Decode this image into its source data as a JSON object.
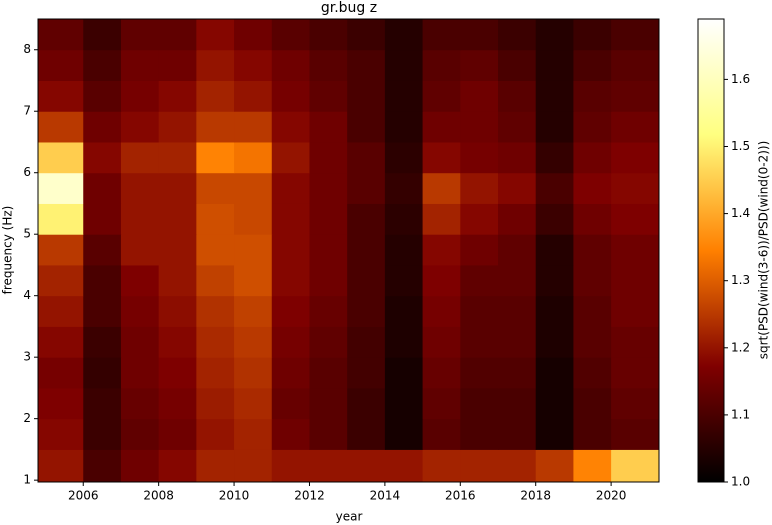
{
  "chart_data": {
    "type": "heatmap",
    "title": "gr.bug z",
    "xlabel": "year",
    "ylabel": "frequency (Hz)",
    "colorbar_label": "sqrt(PSD(wind(3-6))/PSD(wind(0-2)))",
    "colormap": "afmhot",
    "xlim": [
      2004.8,
      2021.27
    ],
    "ylim": [
      0.97,
      8.5
    ],
    "clim": [
      1.0,
      1.69
    ],
    "xticks": [
      2006,
      2008,
      2010,
      2012,
      2014,
      2016,
      2018,
      2020
    ],
    "yticks": [
      1,
      2,
      3,
      4,
      5,
      6,
      7,
      8
    ],
    "cticks": [
      {
        "value": 1,
        "label": "1.0"
      },
      1.1,
      1.2,
      1.3,
      1.4,
      1.5,
      1.6
    ],
    "x_edges": [
      2004.8,
      2006,
      2007,
      2008,
      2009,
      2010,
      2011,
      2012,
      2013,
      2014,
      2015,
      2016,
      2017,
      2018,
      2019,
      2020,
      2021.27
    ],
    "y_edges": [
      0.97,
      1.5,
      2,
      2.5,
      3,
      3.5,
      4,
      4.5,
      5,
      5.5,
      6,
      6.5,
      7,
      7.5,
      8,
      8.5
    ],
    "z": [
      [
        1.2,
        1.1,
        1.15,
        1.18,
        1.22,
        1.22,
        1.2,
        1.2,
        1.2,
        1.2,
        1.22,
        1.22,
        1.22,
        1.25,
        1.35,
        1.45
      ],
      [
        1.18,
        1.08,
        1.13,
        1.15,
        1.2,
        1.22,
        1.15,
        1.12,
        1.08,
        1.03,
        1.12,
        1.1,
        1.1,
        1.03,
        1.1,
        1.12
      ],
      [
        1.17,
        1.08,
        1.14,
        1.16,
        1.21,
        1.23,
        1.14,
        1.12,
        1.08,
        1.03,
        1.13,
        1.1,
        1.1,
        1.03,
        1.1,
        1.13
      ],
      [
        1.16,
        1.07,
        1.15,
        1.17,
        1.22,
        1.24,
        1.15,
        1.12,
        1.09,
        1.03,
        1.14,
        1.11,
        1.11,
        1.03,
        1.11,
        1.14
      ],
      [
        1.18,
        1.08,
        1.15,
        1.18,
        1.23,
        1.25,
        1.16,
        1.13,
        1.09,
        1.04,
        1.15,
        1.12,
        1.12,
        1.04,
        1.12,
        1.14
      ],
      [
        1.2,
        1.1,
        1.16,
        1.19,
        1.24,
        1.26,
        1.17,
        1.14,
        1.1,
        1.04,
        1.16,
        1.12,
        1.12,
        1.04,
        1.12,
        1.15
      ],
      [
        1.22,
        1.1,
        1.17,
        1.2,
        1.26,
        1.28,
        1.18,
        1.15,
        1.1,
        1.05,
        1.17,
        1.13,
        1.13,
        1.05,
        1.13,
        1.15
      ],
      [
        1.25,
        1.12,
        1.2,
        1.2,
        1.28,
        1.28,
        1.18,
        1.15,
        1.1,
        1.05,
        1.18,
        1.15,
        1.13,
        1.05,
        1.13,
        1.15
      ],
      [
        1.5,
        1.15,
        1.2,
        1.2,
        1.28,
        1.27,
        1.18,
        1.15,
        1.1,
        1.06,
        1.22,
        1.18,
        1.15,
        1.08,
        1.15,
        1.17
      ],
      [
        1.62,
        1.15,
        1.2,
        1.2,
        1.27,
        1.27,
        1.18,
        1.15,
        1.12,
        1.07,
        1.25,
        1.2,
        1.18,
        1.1,
        1.17,
        1.18
      ],
      [
        1.45,
        1.18,
        1.22,
        1.22,
        1.35,
        1.33,
        1.2,
        1.15,
        1.12,
        1.06,
        1.18,
        1.16,
        1.15,
        1.07,
        1.15,
        1.17
      ],
      [
        1.25,
        1.15,
        1.18,
        1.2,
        1.25,
        1.25,
        1.18,
        1.15,
        1.1,
        1.05,
        1.15,
        1.15,
        1.13,
        1.05,
        1.13,
        1.15
      ],
      [
        1.18,
        1.12,
        1.16,
        1.18,
        1.22,
        1.2,
        1.16,
        1.13,
        1.1,
        1.05,
        1.13,
        1.15,
        1.12,
        1.05,
        1.12,
        1.13
      ],
      [
        1.15,
        1.1,
        1.15,
        1.15,
        1.2,
        1.18,
        1.15,
        1.12,
        1.1,
        1.05,
        1.12,
        1.13,
        1.1,
        1.05,
        1.1,
        1.12
      ],
      [
        1.13,
        1.08,
        1.13,
        1.13,
        1.18,
        1.15,
        1.12,
        1.1,
        1.08,
        1.05,
        1.1,
        1.1,
        1.08,
        1.05,
        1.08,
        1.1
      ]
    ]
  }
}
